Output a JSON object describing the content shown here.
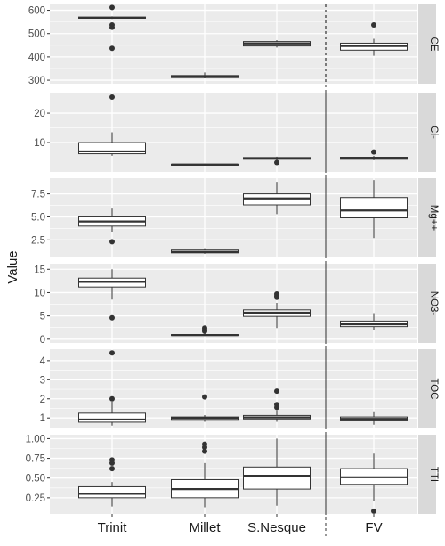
{
  "chart_data": {
    "type": "box",
    "ylabel": "Value",
    "xlabel": "",
    "categories": [
      "Trinit",
      "Millet",
      "S.Nesque",
      "FV"
    ],
    "reference_line": {
      "position": "between S.Nesque and FV",
      "style": "dashed"
    },
    "grid": true,
    "colors": {
      "panel_bg": "#ebebeb",
      "strip_bg": "#d9d9d9",
      "grid": "#ffffff",
      "box_fill": "#ffffff",
      "box_line": "#333333"
    },
    "panels": [
      {
        "label": "CE",
        "ylim": [
          285,
          625
        ],
        "yticks": [
          300,
          400,
          500,
          600
        ],
        "tick_labels": [
          "300",
          "400",
          "500",
          "600"
        ],
        "boxes": [
          {
            "category": "Trinit",
            "min": 563,
            "q1": 566,
            "median": 568,
            "q3": 571,
            "max": 574,
            "outliers": [
              612,
              537,
              527,
              437
            ]
          },
          {
            "category": "Millet",
            "min": 308,
            "q1": 311,
            "median": 317,
            "q3": 320,
            "max": 333,
            "outliers": []
          },
          {
            "category": "S.Nesque",
            "min": 440,
            "q1": 447,
            "median": 458,
            "q3": 466,
            "max": 472,
            "outliers": []
          },
          {
            "category": "FV",
            "min": 405,
            "q1": 429,
            "median": 447,
            "q3": 459,
            "max": 478,
            "outliers": [
              537
            ]
          }
        ]
      },
      {
        "label": "Cl-",
        "ylim": [
          0,
          27
        ],
        "yticks": [
          10,
          20
        ],
        "tick_labels": [
          "10",
          "20"
        ],
        "boxes": [
          {
            "category": "Trinit",
            "min": 5.5,
            "q1": 6.2,
            "median": 7,
            "q3": 10,
            "max": 13.5,
            "outliers": [
              25.5
            ]
          },
          {
            "category": "Millet",
            "min": 2.2,
            "q1": 2.4,
            "median": 2.5,
            "q3": 2.6,
            "max": 2.8,
            "outliers": []
          },
          {
            "category": "S.Nesque",
            "min": 4,
            "q1": 4.3,
            "median": 4.6,
            "q3": 4.9,
            "max": 5.2,
            "outliers": [
              3.2
            ]
          },
          {
            "category": "FV",
            "min": 4,
            "q1": 4.3,
            "median": 4.6,
            "q3": 5,
            "max": 5.5,
            "outliers": [
              6.8
            ]
          }
        ]
      },
      {
        "label": "Mg++",
        "ylim": [
          0.6,
          9.2
        ],
        "yticks": [
          2.5,
          5.0,
          7.5
        ],
        "tick_labels": [
          "2.5",
          "5.0",
          "7.5"
        ],
        "boxes": [
          {
            "category": "Trinit",
            "min": 3.3,
            "q1": 4.0,
            "median": 4.5,
            "q3": 5.0,
            "max": 5.9,
            "outliers": [
              2.3
            ]
          },
          {
            "category": "Millet",
            "min": 1.0,
            "q1": 1.1,
            "median": 1.2,
            "q3": 1.4,
            "max": 1.6,
            "outliers": []
          },
          {
            "category": "S.Nesque",
            "min": 5.3,
            "q1": 6.3,
            "median": 7.0,
            "q3": 7.5,
            "max": 8.8,
            "outliers": []
          },
          {
            "category": "FV",
            "min": 2.7,
            "q1": 4.9,
            "median": 5.7,
            "q3": 7.1,
            "max": 9.0,
            "outliers": []
          }
        ]
      },
      {
        "label": "NO3-",
        "ylim": [
          -0.8,
          16.2
        ],
        "yticks": [
          0,
          5,
          10,
          15
        ],
        "tick_labels": [
          "0",
          "5",
          "10",
          "15"
        ],
        "boxes": [
          {
            "category": "Trinit",
            "min": 8.5,
            "q1": 11.2,
            "median": 12.3,
            "q3": 13.1,
            "max": 15.0,
            "outliers": [
              4.6
            ]
          },
          {
            "category": "Millet",
            "min": 0.7,
            "q1": 0.8,
            "median": 0.9,
            "q3": 1.0,
            "max": 1.2,
            "outliers": [
              2.4,
              2.0,
              1.7
            ]
          },
          {
            "category": "S.Nesque",
            "min": 2.4,
            "q1": 4.9,
            "median": 5.7,
            "q3": 6.3,
            "max": 7.8,
            "outliers": [
              9.7,
              9.3,
              9.0
            ]
          },
          {
            "category": "FV",
            "min": 1.9,
            "q1": 2.7,
            "median": 3.2,
            "q3": 3.9,
            "max": 5.6,
            "outliers": []
          }
        ]
      },
      {
        "label": "TOC",
        "ylim": [
          0.45,
          4.6
        ],
        "yticks": [
          1,
          2,
          3,
          4
        ],
        "tick_labels": [
          "1",
          "2",
          "3",
          "4"
        ],
        "boxes": [
          {
            "category": "Trinit",
            "min": 0.6,
            "q1": 0.78,
            "median": 0.92,
            "q3": 1.25,
            "max": 1.85,
            "outliers": [
              4.4,
              2.0
            ]
          },
          {
            "category": "Millet",
            "min": 0.8,
            "q1": 0.88,
            "median": 0.98,
            "q3": 1.05,
            "max": 1.15,
            "outliers": [
              2.1
            ]
          },
          {
            "category": "S.Nesque",
            "min": 0.8,
            "q1": 0.95,
            "median": 1.03,
            "q3": 1.13,
            "max": 1.4,
            "outliers": [
              2.4,
              1.7,
              1.55
            ]
          },
          {
            "category": "FV",
            "min": 0.65,
            "q1": 0.85,
            "median": 0.95,
            "q3": 1.05,
            "max": 1.35,
            "outliers": []
          }
        ]
      },
      {
        "label": "TTI",
        "ylim": [
          0.045,
          1.05
        ],
        "yticks": [
          0.25,
          0.5,
          0.75,
          1.0
        ],
        "tick_labels": [
          "0.25",
          "0.50",
          "0.75",
          "1.00"
        ],
        "boxes": [
          {
            "category": "Trinit",
            "min": 0.14,
            "q1": 0.25,
            "median": 0.3,
            "q3": 0.39,
            "max": 0.45,
            "outliers": [
              0.73,
              0.69,
              0.62
            ]
          },
          {
            "category": "Millet",
            "min": 0.13,
            "q1": 0.25,
            "median": 0.36,
            "q3": 0.48,
            "max": 0.69,
            "outliers": [
              0.93,
              0.89,
              0.84
            ]
          },
          {
            "category": "S.Nesque",
            "min": 0.15,
            "q1": 0.36,
            "median": 0.53,
            "q3": 0.64,
            "max": 1.0,
            "outliers": []
          },
          {
            "category": "FV",
            "min": 0.21,
            "q1": 0.42,
            "median": 0.51,
            "q3": 0.62,
            "max": 0.81,
            "outliers": [
              0.08
            ]
          }
        ]
      }
    ]
  }
}
